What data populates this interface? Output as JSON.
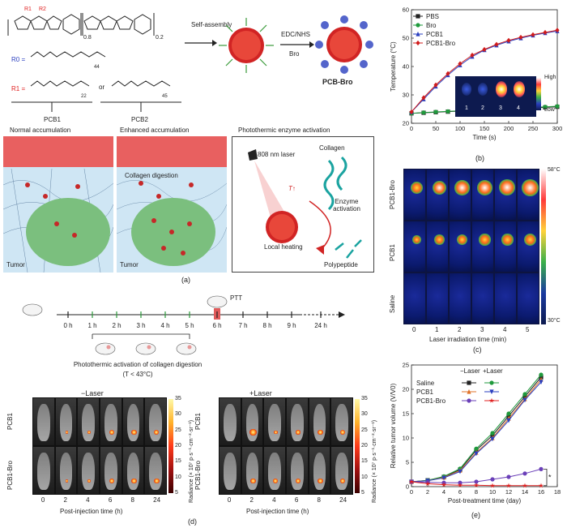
{
  "panel_a": {
    "letter": "(a)",
    "chem_labels": [
      "R1",
      "R2",
      "N",
      "N",
      "S",
      "0.8",
      "0.2",
      "n"
    ],
    "r0_label": "R0 =",
    "r0_repeat": "44",
    "r1_label": "R1 =",
    "r1_repeat_a": "22",
    "or_label": "or",
    "r1_repeat_b": "45",
    "pcb1": "PCB1",
    "pcb2": "PCB2",
    "self_assembly": "Self-assembly",
    "edc_nhs": "EDC/NHS",
    "bro": "Bro",
    "pcb_bro": "PCB-Bro",
    "normal_accumulation": "Normal accumulation",
    "enhanced_accumulation": "Enhanced accumulation",
    "photothermic_title": "Photothermic enzyme activation",
    "laser_808": "808 nm laser",
    "collagen": "Collagen",
    "t_up": "T↑",
    "enzyme_activation": "Enzyme activation",
    "local_heating": "Local heating",
    "polypeptide": "Polypeptide",
    "collagen_digestion": "Collagen digestion",
    "tumor": "Tumor"
  },
  "panel_b": {
    "letter": "(b)",
    "legend_position": "top-left",
    "inset_high": "High",
    "inset_low": "Low",
    "inset_numbers": [
      "1",
      "2",
      "3",
      "4"
    ]
  },
  "chart_data": [
    {
      "type": "line",
      "panel": "b",
      "xlabel": "Time (s)",
      "ylabel": "Temperature (°C)",
      "xlim": [
        0,
        300
      ],
      "ylim": [
        20,
        60
      ],
      "xticks": [
        "0",
        "50",
        "100",
        "150",
        "200",
        "250",
        "300"
      ],
      "yticks": [
        "20",
        "30",
        "40",
        "50",
        "60"
      ],
      "x": [
        0,
        25,
        50,
        75,
        100,
        125,
        150,
        175,
        200,
        225,
        250,
        275,
        300
      ],
      "series": [
        {
          "name": "PBS",
          "color": "#222222",
          "marker": "square",
          "values": [
            23.5,
            23.7,
            23.9,
            24.1,
            24.3,
            24.5,
            24.7,
            24.9,
            25.0,
            25.2,
            25.4,
            25.6,
            25.8
          ]
        },
        {
          "name": "Bro",
          "color": "#1f9a3c",
          "marker": "circle",
          "values": [
            23.5,
            23.8,
            24.0,
            24.2,
            24.4,
            24.6,
            24.8,
            25.0,
            25.2,
            25.4,
            25.6,
            25.8,
            26.0
          ]
        },
        {
          "name": "PCB1",
          "color": "#2a3fbf",
          "marker": "triangle",
          "values": [
            24.0,
            28.5,
            33.0,
            37.0,
            40.5,
            43.5,
            45.8,
            47.5,
            48.9,
            50.0,
            51.0,
            51.8,
            52.5
          ]
        },
        {
          "name": "PCB1-Bro",
          "color": "#d01c1c",
          "marker": "diamond",
          "values": [
            24.0,
            29.0,
            33.5,
            37.5,
            41.0,
            44.0,
            46.0,
            47.8,
            49.2,
            50.3,
            51.2,
            52.0,
            52.8
          ]
        }
      ]
    },
    {
      "type": "line",
      "panel": "e",
      "xlabel": "Post-treatment time (day)",
      "ylabel": "Relative tumor volume (V/V0)",
      "xlim": [
        0,
        18
      ],
      "ylim": [
        0,
        25
      ],
      "xticks": [
        "0",
        "2",
        "4",
        "6",
        "8",
        "10",
        "12",
        "14",
        "16",
        "18"
      ],
      "yticks": [
        "0",
        "5",
        "10",
        "15",
        "20",
        "25"
      ],
      "x": [
        0,
        2,
        4,
        6,
        8,
        10,
        12,
        14,
        16
      ],
      "series": [
        {
          "name": "Saline −Laser",
          "color": "#222222",
          "marker": "square",
          "values": [
            1,
            1.3,
            2.0,
            3.5,
            7.5,
            10.5,
            14.5,
            18.5,
            22.5
          ]
        },
        {
          "name": "Saline +Laser",
          "color": "#1f9a3c",
          "marker": "circle",
          "values": [
            1,
            1.3,
            2.1,
            3.7,
            7.8,
            11.0,
            15.0,
            19.0,
            23.0
          ]
        },
        {
          "name": "PCB1 −Laser",
          "color": "#e0732a",
          "marker": "triangle",
          "values": [
            1,
            1.2,
            1.9,
            3.3,
            7.0,
            10.0,
            14.0,
            18.0,
            22.0
          ]
        },
        {
          "name": "PCB1 +Laser",
          "color": "#2a3fbf",
          "marker": "triangle-down",
          "values": [
            1,
            1.2,
            1.8,
            3.1,
            6.8,
            9.8,
            13.6,
            17.8,
            21.5
          ]
        },
        {
          "name": "PCB1-Bro −Laser",
          "color": "#6a3fb8",
          "marker": "circle",
          "values": [
            1,
            0.9,
            0.8,
            0.8,
            1.0,
            1.5,
            2.0,
            2.7,
            3.6
          ]
        },
        {
          "name": "PCB1-Bro +Laser",
          "color": "#e02020",
          "marker": "star",
          "values": [
            1,
            0.6,
            0.4,
            0.3,
            0.3,
            0.2,
            0.2,
            0.2,
            0.2
          ]
        }
      ],
      "significance": "*"
    }
  ],
  "panel_c": {
    "letter": "(c)",
    "rows": [
      "PCB1-Bro",
      "PCB1",
      "Saline"
    ],
    "x_values": [
      "0",
      "1",
      "2",
      "3",
      "4",
      "5"
    ],
    "xlabel": "Laser irradiation time (min)",
    "scale_top": "58°C",
    "scale_bottom": "30°C",
    "tumor_heat": [
      [
        0.55,
        0.7,
        0.75,
        0.8,
        0.85,
        0.9
      ],
      [
        0.2,
        0.35,
        0.4,
        0.45,
        0.45,
        0.5
      ],
      [
        0,
        0,
        0,
        0,
        0,
        0
      ]
    ]
  },
  "panel_timeline": {
    "ticks": [
      "0 h",
      "1 h",
      "2 h",
      "3 h",
      "4 h",
      "5 h",
      "6 h",
      "7 h",
      "8 h",
      "9 h",
      "24 h"
    ],
    "ptt": "PTT",
    "caption": "Photothermic activation of collagen digestion",
    "temp_note": "(T < 43°C)"
  },
  "panel_d": {
    "letter": "(d)",
    "minus_laser": "−Laser",
    "plus_laser": "+Laser",
    "rows": [
      "PCB1",
      "PCB1-Bro"
    ],
    "times": [
      "0",
      "2",
      "4",
      "6",
      "8",
      "24"
    ],
    "xlabel": "Post-injection time (h)",
    "colorbar_ticks": [
      "35",
      "30",
      "25",
      "20",
      "15",
      "10",
      "5"
    ],
    "colorbar_label": "Radiance (× 10⁷ p·s⁻¹·cm⁻²·sr⁻¹)",
    "signal_minus": [
      [
        0,
        0.15,
        0.2,
        0.5,
        0.6,
        0.6
      ],
      [
        0,
        0.1,
        0.25,
        0.5,
        0.6,
        0.65
      ]
    ],
    "signal_plus": [
      [
        0,
        0.9,
        0.3,
        0.4,
        0.6,
        0.6
      ],
      [
        0,
        0.6,
        0.6,
        0.6,
        0.6,
        0.6
      ]
    ]
  },
  "panel_e": {
    "letter": "(e)",
    "legend_header_minus": "−Laser",
    "legend_header_plus": "+Laser",
    "legend_rows": [
      "Saline",
      "PCB1",
      "PCB1-Bro"
    ]
  }
}
